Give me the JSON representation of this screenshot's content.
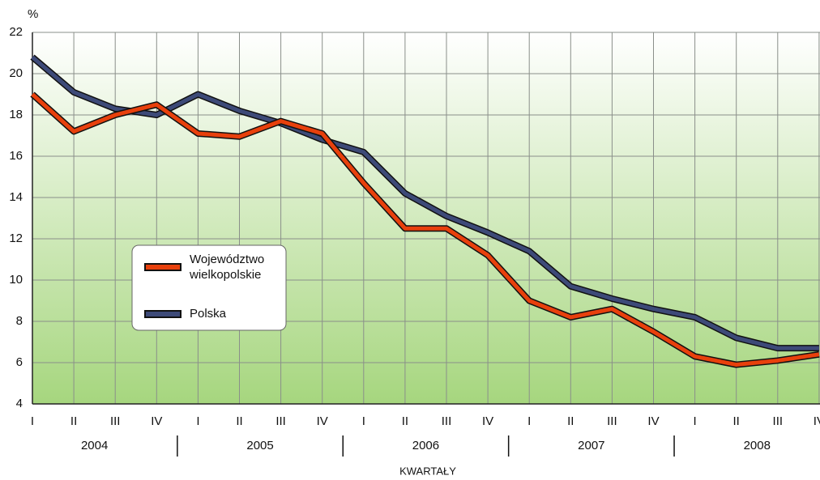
{
  "chart_data": {
    "type": "line",
    "y_unit": "%",
    "x_label": "KWARTAŁY",
    "categories": [
      "I",
      "II",
      "III",
      "IV",
      "I",
      "II",
      "III",
      "IV",
      "I",
      "II",
      "III",
      "IV",
      "I",
      "II",
      "III",
      "IV",
      "I",
      "II",
      "III",
      "IV"
    ],
    "x_groups": [
      "2004",
      "2005",
      "2006",
      "2007",
      "2008"
    ],
    "series": [
      {
        "name": "Województwo wielkopolskie",
        "color": "#e8400c",
        "values": [
          19.0,
          17.2,
          18.0,
          18.5,
          17.1,
          16.95,
          17.7,
          17.1,
          14.7,
          12.5,
          12.5,
          11.2,
          9.0,
          8.2,
          8.6,
          7.5,
          6.3,
          5.9,
          6.1,
          6.4
        ]
      },
      {
        "name": "Polska",
        "color": "#3d4a78",
        "values": [
          20.8,
          19.1,
          18.3,
          18.0,
          19.0,
          18.2,
          17.6,
          16.8,
          16.2,
          14.2,
          13.1,
          12.3,
          11.4,
          9.7,
          9.1,
          8.6,
          8.2,
          7.2,
          6.7,
          6.7
        ]
      }
    ],
    "ylim": [
      4,
      22
    ],
    "yticks": [
      4,
      6,
      8,
      10,
      12,
      14,
      16,
      18,
      20,
      22
    ],
    "grid": true
  }
}
